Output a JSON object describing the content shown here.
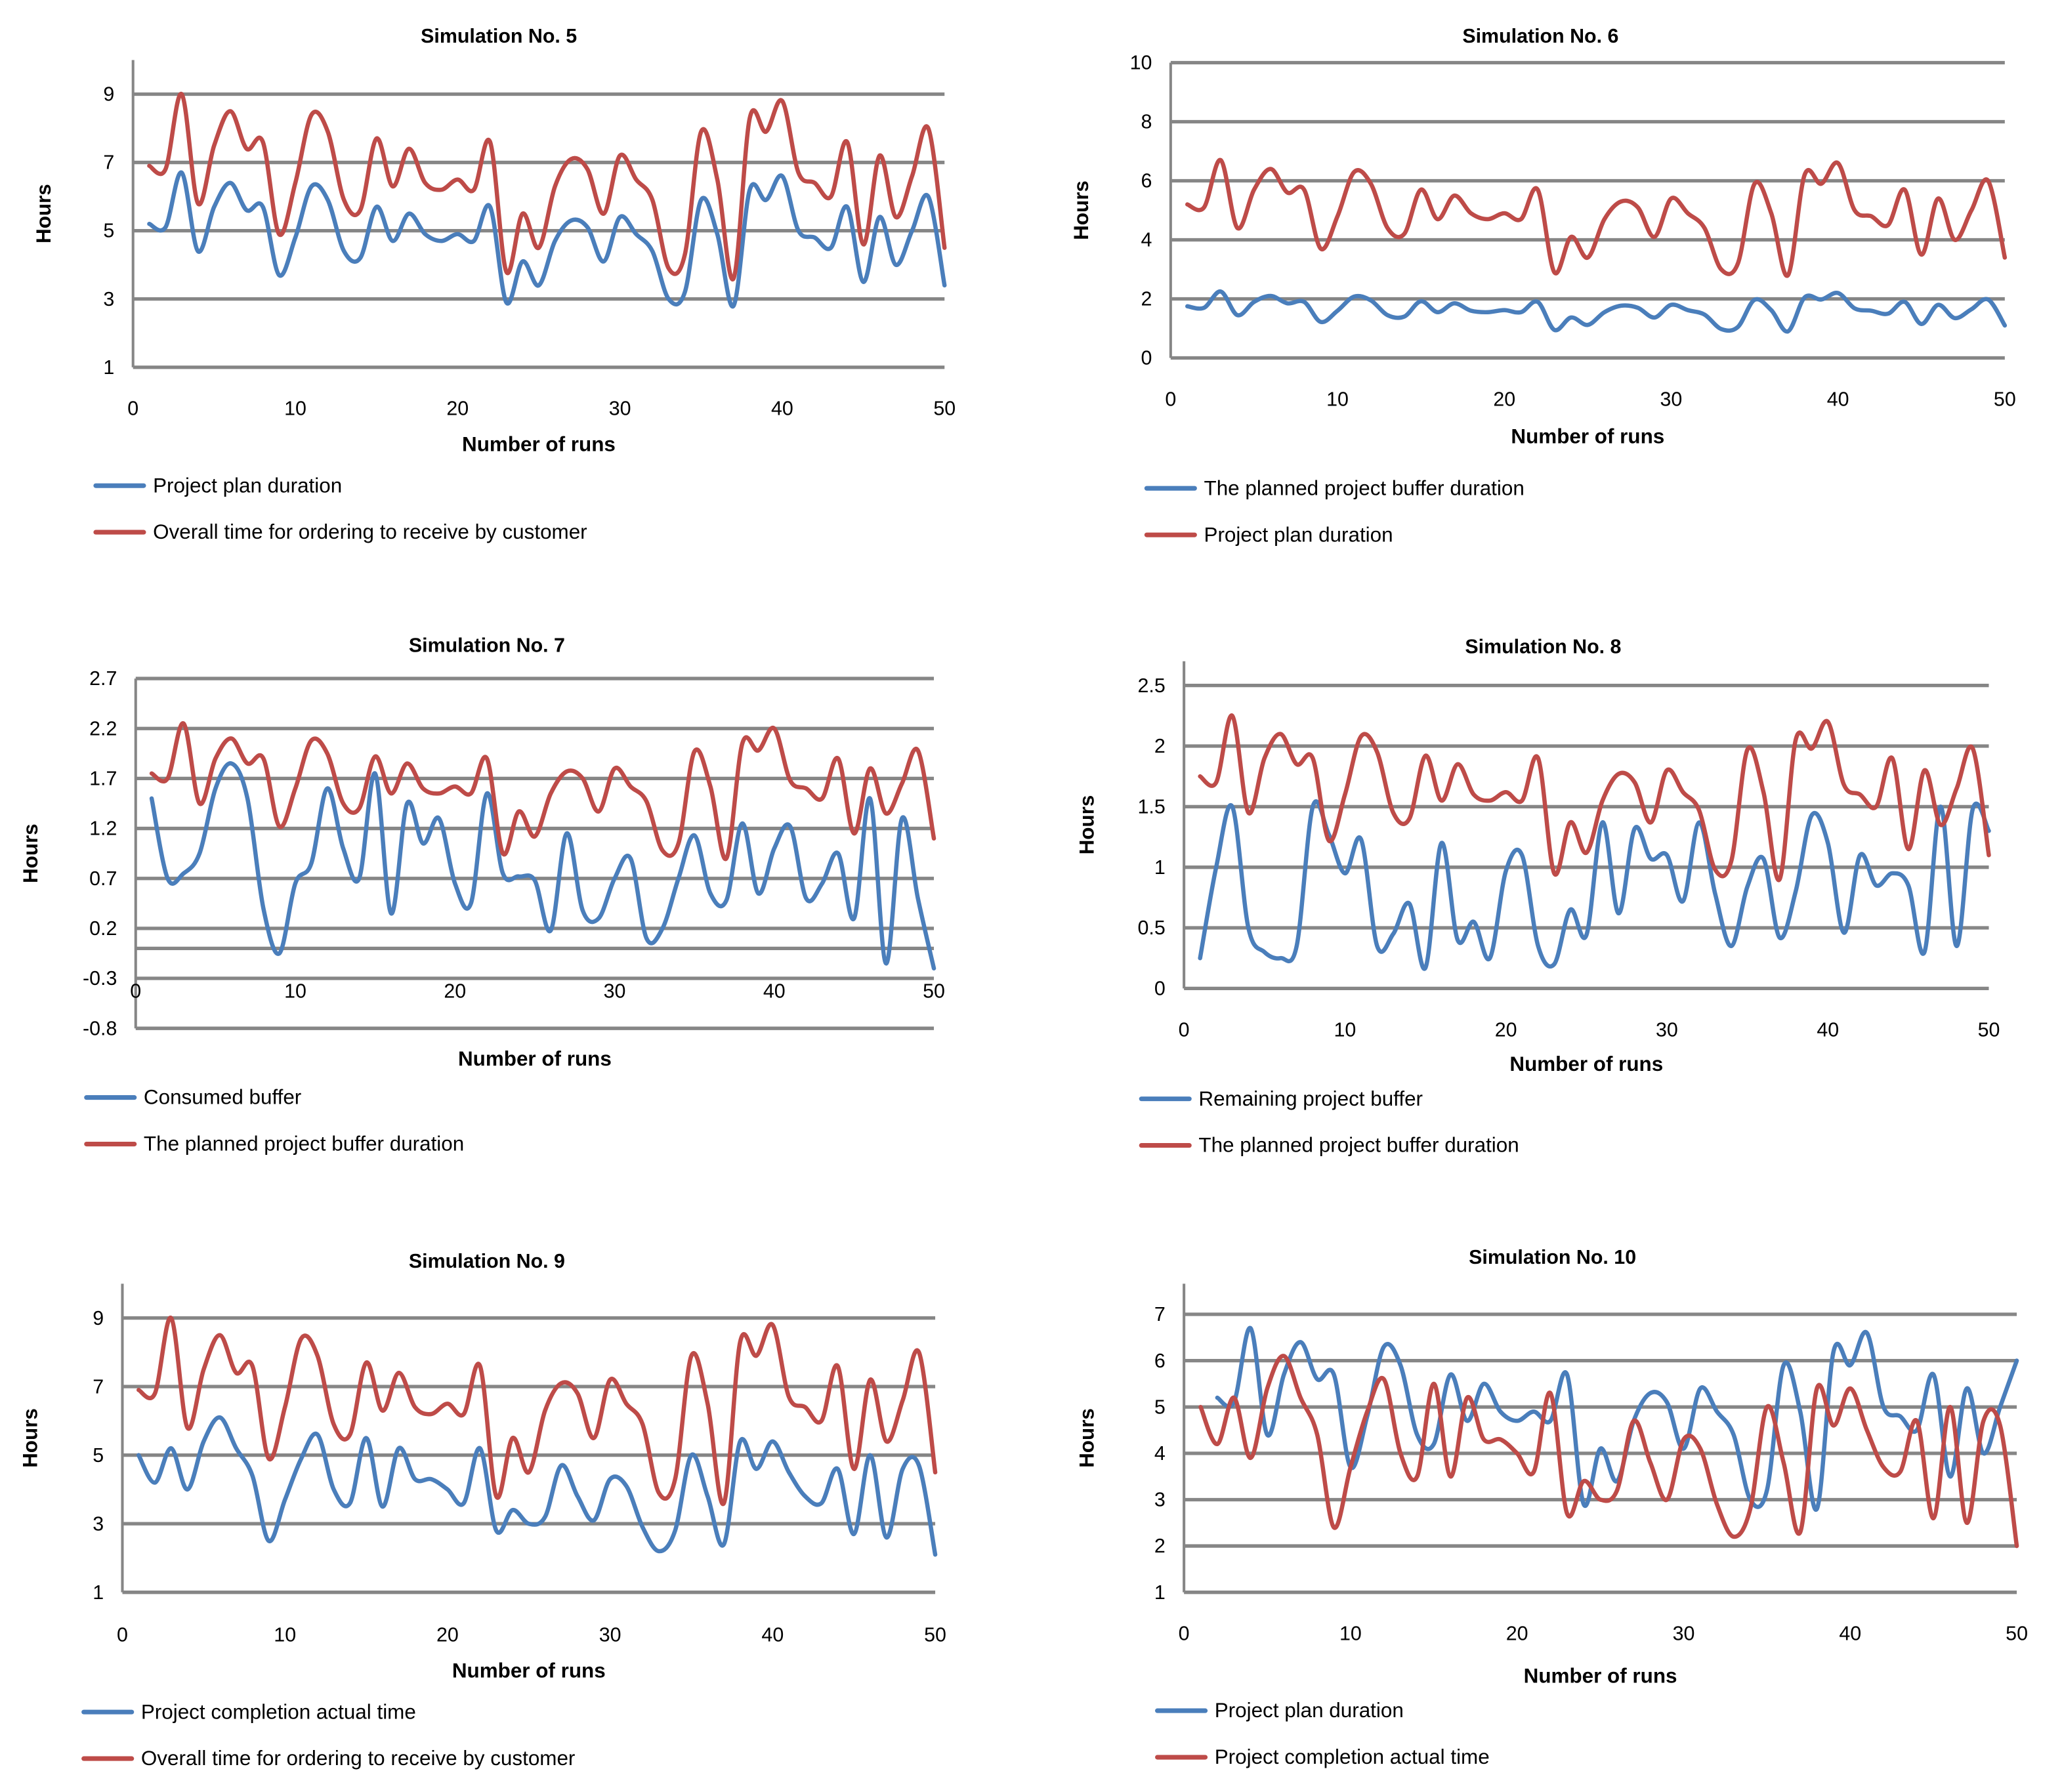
{
  "colors": {
    "blue": "#4a7ebb",
    "red": "#be4b48",
    "grid": "#868686"
  },
  "chart_data": [
    {
      "type": "line",
      "title": "Simulation No. 5",
      "xlabel": "Number of runs",
      "ylabel": "Hours",
      "xlim": [
        0,
        50
      ],
      "ylim": [
        1,
        10
      ],
      "xticks": [
        0,
        10,
        20,
        30,
        40,
        50
      ],
      "yticks": [
        1,
        3,
        5,
        7,
        9
      ],
      "grid": true,
      "legend": "bottom-left",
      "series": [
        {
          "name": "Project plan duration",
          "color": "blue",
          "x_start": 1,
          "values": [
            5.2,
            5.1,
            6.7,
            4.4,
            5.7,
            6.4,
            5.6,
            5.7,
            3.7,
            4.8,
            6.3,
            5.9,
            4.4,
            4.2,
            5.7,
            4.7,
            5.5,
            4.9,
            4.7,
            4.9,
            4.7,
            5.7,
            2.9,
            4.1,
            3.4,
            4.7,
            5.3,
            5.1,
            4.1,
            5.4,
            4.9,
            4.4,
            3.0,
            3.2,
            5.9,
            4.9,
            2.8,
            6.2,
            5.9,
            6.6,
            5.0,
            4.8,
            4.5,
            5.7,
            3.5,
            5.4,
            4.0,
            5.0,
            6.0,
            3.4
          ]
        },
        {
          "name": "Overall time for ordering to receive by customer",
          "color": "red",
          "x_start": 1,
          "values": [
            6.9,
            6.8,
            9.0,
            5.8,
            7.5,
            8.5,
            7.4,
            7.6,
            4.9,
            6.4,
            8.4,
            7.9,
            5.9,
            5.6,
            7.7,
            6.3,
            7.4,
            6.4,
            6.2,
            6.5,
            6.2,
            7.6,
            3.8,
            5.5,
            4.5,
            6.3,
            7.1,
            6.8,
            5.5,
            7.2,
            6.5,
            5.9,
            3.9,
            4.3,
            7.9,
            6.5,
            3.6,
            8.3,
            7.9,
            8.8,
            6.7,
            6.4,
            6.0,
            7.6,
            4.6,
            7.2,
            5.4,
            6.6,
            8.0,
            4.5
          ]
        }
      ]
    },
    {
      "type": "line",
      "title": "Simulation No. 6",
      "xlabel": "Number of runs",
      "ylabel": "Hours",
      "xlim": [
        0,
        50
      ],
      "ylim": [
        0,
        10
      ],
      "xticks": [
        0,
        10,
        20,
        30,
        40,
        50
      ],
      "yticks": [
        0,
        2,
        4,
        6,
        8,
        10
      ],
      "grid": true,
      "legend": "bottom-left",
      "series": [
        {
          "name": "The planned project buffer duration",
          "color": "blue",
          "x_start": 1,
          "values": [
            1.75,
            1.7,
            2.25,
            1.45,
            1.9,
            2.1,
            1.85,
            1.9,
            1.22,
            1.6,
            2.08,
            1.95,
            1.45,
            1.4,
            1.92,
            1.55,
            1.85,
            1.6,
            1.55,
            1.62,
            1.55,
            1.9,
            0.95,
            1.37,
            1.12,
            1.55,
            1.77,
            1.7,
            1.37,
            1.8,
            1.62,
            1.47,
            0.98,
            1.05,
            1.97,
            1.62,
            0.9,
            2.05,
            1.98,
            2.2,
            1.68,
            1.6,
            1.5,
            1.9,
            1.15,
            1.8,
            1.35,
            1.65,
            1.98,
            1.1
          ]
        },
        {
          "name": "Project plan duration",
          "color": "red",
          "x_start": 1,
          "values": [
            5.2,
            5.1,
            6.7,
            4.4,
            5.7,
            6.4,
            5.6,
            5.7,
            3.7,
            4.8,
            6.3,
            5.9,
            4.4,
            4.2,
            5.7,
            4.7,
            5.5,
            4.9,
            4.7,
            4.9,
            4.7,
            5.7,
            2.9,
            4.1,
            3.4,
            4.7,
            5.3,
            5.1,
            4.1,
            5.4,
            4.9,
            4.4,
            3.0,
            3.2,
            5.9,
            4.9,
            2.8,
            6.2,
            5.9,
            6.6,
            5.0,
            4.8,
            4.5,
            5.7,
            3.5,
            5.4,
            4.0,
            5.0,
            6.0,
            3.4
          ]
        }
      ]
    },
    {
      "type": "line",
      "title": "Simulation No. 7",
      "xlabel": "Number of runs",
      "ylabel": "Hours",
      "xlim": [
        0,
        50
      ],
      "ylim": [
        -0.8,
        2.7
      ],
      "x_axis_crosses": -0.3,
      "xticks": [
        0,
        10,
        20,
        30,
        40,
        50
      ],
      "yticks": [
        -0.8,
        -0.3,
        0.2,
        0.7,
        1.2,
        1.7,
        2.2,
        2.7
      ],
      "extra_gridlines": [
        0
      ],
      "grid": true,
      "legend": "bottom-left",
      "series": [
        {
          "name": "Consumed buffer",
          "color": "blue",
          "x_start": 1,
          "values": [
            1.5,
            0.7,
            0.75,
            0.95,
            1.6,
            1.85,
            1.5,
            0.4,
            -0.05,
            0.65,
            0.85,
            1.6,
            1.0,
            0.7,
            1.75,
            0.35,
            1.45,
            1.05,
            1.3,
            0.65,
            0.45,
            1.55,
            0.75,
            0.72,
            0.68,
            0.18,
            1.15,
            0.38,
            0.3,
            0.7,
            0.9,
            0.1,
            0.2,
            0.7,
            1.13,
            0.55,
            0.48,
            1.25,
            0.55,
            1.0,
            1.22,
            0.5,
            0.65,
            0.95,
            0.3,
            1.5,
            -0.15,
            1.3,
            0.5,
            -0.2
          ]
        },
        {
          "name": "The planned project buffer duration",
          "color": "red",
          "x_start": 1,
          "values": [
            1.75,
            1.7,
            2.25,
            1.45,
            1.9,
            2.1,
            1.85,
            1.9,
            1.22,
            1.6,
            2.08,
            1.95,
            1.45,
            1.4,
            1.92,
            1.55,
            1.85,
            1.6,
            1.55,
            1.62,
            1.55,
            1.9,
            0.95,
            1.37,
            1.12,
            1.55,
            1.77,
            1.7,
            1.37,
            1.8,
            1.62,
            1.47,
            0.98,
            1.05,
            1.97,
            1.62,
            0.9,
            2.05,
            1.98,
            2.2,
            1.68,
            1.6,
            1.5,
            1.9,
            1.15,
            1.8,
            1.35,
            1.65,
            1.98,
            1.1
          ]
        }
      ]
    },
    {
      "type": "line",
      "title": "Simulation No. 8",
      "xlabel": "Number of runs",
      "ylabel": "Hours",
      "xlim": [
        0,
        50
      ],
      "ylim": [
        0,
        2.7
      ],
      "xticks": [
        0,
        10,
        20,
        30,
        40,
        50
      ],
      "yticks": [
        0,
        0.5,
        1,
        1.5,
        2,
        2.5
      ],
      "grid": true,
      "legend": "bottom-left",
      "series": [
        {
          "name": "Remaining project buffer",
          "color": "blue",
          "x_start": 1,
          "values": [
            0.25,
            1.0,
            1.5,
            0.5,
            0.3,
            0.25,
            0.35,
            1.5,
            1.27,
            0.95,
            1.23,
            0.35,
            0.45,
            0.7,
            0.17,
            1.2,
            0.4,
            0.55,
            0.25,
            0.97,
            1.1,
            0.35,
            0.2,
            0.65,
            0.44,
            1.37,
            0.62,
            1.32,
            1.07,
            1.1,
            0.72,
            1.37,
            0.78,
            0.35,
            0.84,
            1.07,
            0.42,
            0.8,
            1.43,
            1.2,
            0.46,
            1.1,
            0.85,
            0.95,
            0.85,
            0.3,
            1.5,
            0.35,
            1.48,
            1.3
          ]
        },
        {
          "name": "The planned project buffer duration",
          "color": "red",
          "x_start": 1,
          "values": [
            1.75,
            1.7,
            2.25,
            1.45,
            1.9,
            2.1,
            1.85,
            1.9,
            1.22,
            1.6,
            2.08,
            1.95,
            1.45,
            1.4,
            1.92,
            1.55,
            1.85,
            1.6,
            1.55,
            1.62,
            1.55,
            1.9,
            0.95,
            1.37,
            1.12,
            1.55,
            1.77,
            1.7,
            1.37,
            1.8,
            1.62,
            1.47,
            0.98,
            1.05,
            1.97,
            1.62,
            0.9,
            2.05,
            1.98,
            2.2,
            1.68,
            1.6,
            1.5,
            1.9,
            1.15,
            1.8,
            1.35,
            1.65,
            1.98,
            1.1
          ]
        }
      ]
    },
    {
      "type": "line",
      "title": "Simulation No. 9",
      "xlabel": "Number of runs",
      "ylabel": "Hours",
      "xlim": [
        0,
        50
      ],
      "ylim": [
        1,
        10
      ],
      "xticks": [
        0,
        10,
        20,
        30,
        40,
        50
      ],
      "yticks": [
        1,
        3,
        5,
        7,
        9
      ],
      "grid": true,
      "legend": "bottom-left",
      "series": [
        {
          "name": "Project completion actual time",
          "color": "blue",
          "x_start": 1,
          "values": [
            5.0,
            4.2,
            5.2,
            4.0,
            5.4,
            6.1,
            5.2,
            4.4,
            2.5,
            3.7,
            4.9,
            5.6,
            4.0,
            3.6,
            5.5,
            3.5,
            5.2,
            4.3,
            4.3,
            4.0,
            3.6,
            5.2,
            2.8,
            3.4,
            3.0,
            3.2,
            4.7,
            3.8,
            3.1,
            4.3,
            4.1,
            2.9,
            2.2,
            2.8,
            5.0,
            3.8,
            2.4,
            5.4,
            4.6,
            5.4,
            4.5,
            3.8,
            3.6,
            4.6,
            2.7,
            5.0,
            2.6,
            4.6,
            4.7,
            2.1
          ]
        },
        {
          "name": "Overall time for ordering to receive by customer",
          "color": "red",
          "x_start": 1,
          "values": [
            6.9,
            6.8,
            9.0,
            5.8,
            7.5,
            8.5,
            7.4,
            7.6,
            4.9,
            6.4,
            8.4,
            7.9,
            5.9,
            5.6,
            7.7,
            6.3,
            7.4,
            6.4,
            6.2,
            6.5,
            6.2,
            7.6,
            3.8,
            5.5,
            4.5,
            6.3,
            7.1,
            6.8,
            5.5,
            7.2,
            6.5,
            5.9,
            3.9,
            4.3,
            7.9,
            6.5,
            3.6,
            8.3,
            7.9,
            8.8,
            6.7,
            6.4,
            6.0,
            7.6,
            4.6,
            7.2,
            5.4,
            6.6,
            8.0,
            4.5
          ]
        }
      ]
    },
    {
      "type": "line",
      "title": "Simulation No. 10",
      "xlabel": "Number of runs",
      "ylabel": "Hours",
      "xlim": [
        0,
        50
      ],
      "ylim": [
        1,
        7.66
      ],
      "xticks": [
        0,
        10,
        20,
        30,
        40,
        50
      ],
      "yticks": [
        1,
        2,
        3,
        4,
        5,
        6,
        7
      ],
      "grid": true,
      "legend": "bottom-left",
      "series": [
        {
          "name": "Project plan duration",
          "color": "blue",
          "x_start": 2,
          "values": [
            5.2,
            5.1,
            6.7,
            4.4,
            5.7,
            6.4,
            5.6,
            5.7,
            3.7,
            4.8,
            6.3,
            5.9,
            4.4,
            4.2,
            5.7,
            4.7,
            5.5,
            4.9,
            4.7,
            4.9,
            4.7,
            5.7,
            2.9,
            4.1,
            3.4,
            4.7,
            5.3,
            5.1,
            4.1,
            5.4,
            4.9,
            4.4,
            3.0,
            3.2,
            5.9,
            4.9,
            2.8,
            6.2,
            5.9,
            6.6,
            5.0,
            4.8,
            4.5,
            5.7,
            3.5,
            5.4,
            4.0,
            5.0,
            6.0
          ]
        },
        {
          "name": "Project completion actual time",
          "color": "red",
          "x_start": 1,
          "values": [
            5.0,
            4.2,
            5.2,
            3.9,
            5.4,
            6.1,
            5.2,
            4.4,
            2.4,
            3.7,
            4.9,
            5.6,
            4.0,
            3.5,
            5.5,
            3.5,
            5.2,
            4.3,
            4.3,
            4.0,
            3.6,
            5.3,
            2.7,
            3.4,
            3.0,
            3.2,
            4.7,
            3.8,
            3.0,
            4.3,
            4.1,
            2.9,
            2.2,
            2.8,
            5.0,
            3.8,
            2.3,
            5.4,
            4.6,
            5.4,
            4.5,
            3.7,
            3.6,
            4.7,
            2.6,
            5.0,
            2.5,
            4.7,
            4.6,
            2.0
          ]
        }
      ]
    }
  ]
}
